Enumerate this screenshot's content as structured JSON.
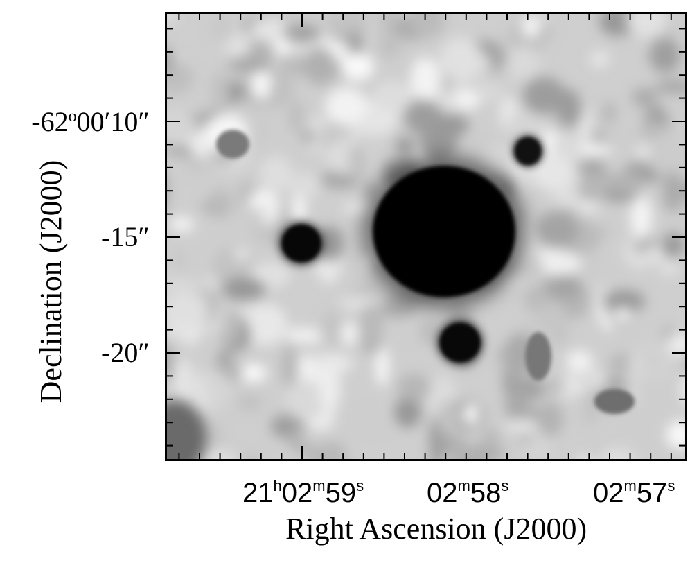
{
  "figure": {
    "xlabel": "Right Ascension (J2000)",
    "ylabel": "Declination (J2000)",
    "yticks": [
      {
        "prefix": "-62",
        "sup": "o",
        "rest": "00′10″"
      },
      {
        "prefix": "-15″",
        "sup": "",
        "rest": ""
      },
      {
        "prefix": "-20″",
        "sup": "",
        "rest": ""
      }
    ],
    "xticks": [
      {
        "parts": [
          "21",
          "h",
          "02",
          "m",
          "59",
          "s"
        ]
      },
      {
        "parts": [
          "",
          "",
          "02",
          "m",
          "58",
          "s"
        ]
      },
      {
        "parts": [
          "",
          "",
          "02",
          "m",
          "57",
          "s"
        ]
      }
    ]
  }
}
